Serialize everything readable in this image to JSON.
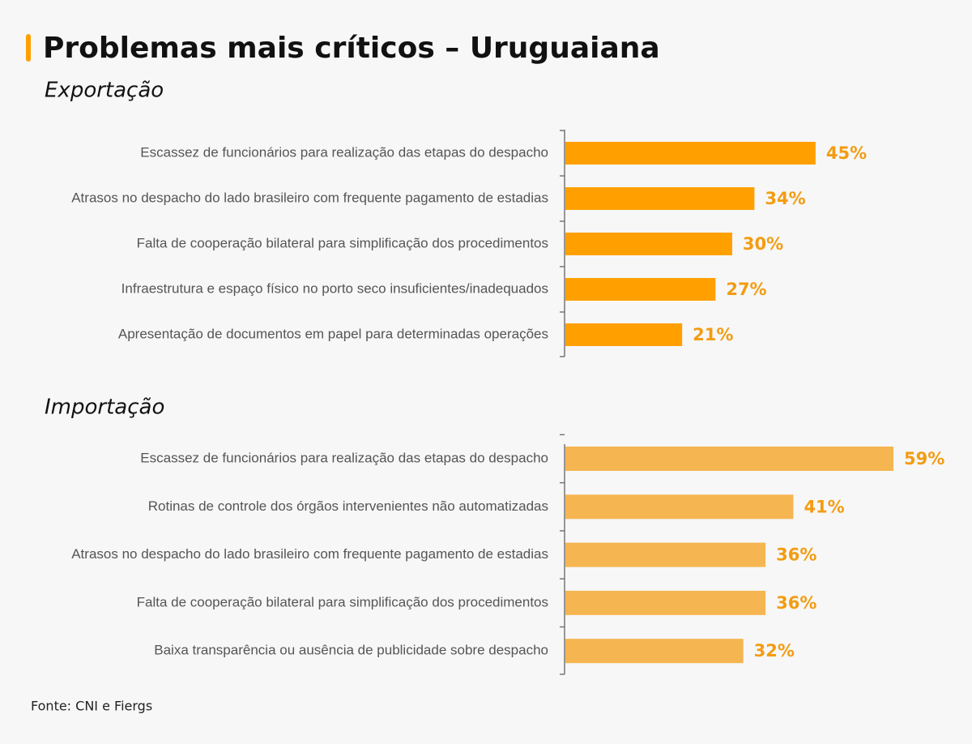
{
  "title": "Problemas mais críticos – Uruguaiana",
  "source": "Fonte: CNI e Fiergs",
  "chart_data": [
    {
      "type": "bar",
      "orientation": "horizontal",
      "title": "Exportação",
      "color": "#ffa000",
      "categories": [
        "Escassez de funcionários para realização das etapas do despacho",
        "Atrasos no despacho do lado brasileiro com frequente pagamento de estadias",
        "Falta de cooperação bilateral para simplificação dos procedimentos",
        "Infraestrutura e espaço físico no porto seco insuficientes/inadequados",
        "Apresentação de documentos em papel  para  determinadas  operações"
      ],
      "values": [
        45,
        34,
        30,
        27,
        21
      ],
      "value_labels": [
        "45%",
        "34%",
        "30%",
        "27%",
        "21%"
      ]
    },
    {
      "type": "bar",
      "orientation": "horizontal",
      "title": "Importação",
      "color": "#f5b550",
      "categories": [
        "Escassez de funcionários para realização das etapas do despacho",
        "Rotinas de controle dos órgãos intervenientes não automatizadas",
        "Atrasos no despacho do lado brasileiro com frequente pagamento de estadias",
        "Falta de cooperação bilateral para simplificação dos procedimentos",
        "Baixa transparência ou ausência de publicidade sobre despacho"
      ],
      "values": [
        59,
        41,
        36,
        36,
        32
      ],
      "value_labels": [
        "59%",
        "41%",
        "36%",
        "36%",
        "32%"
      ]
    }
  ]
}
